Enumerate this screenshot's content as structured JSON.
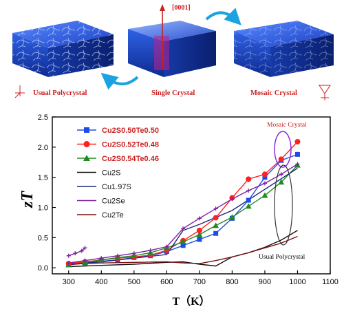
{
  "illustration": {
    "axis_label": "[0001]",
    "labels": [
      {
        "text": "Usual Polycrystal",
        "color": "#cc1f1f"
      },
      {
        "text": "Single Crystal",
        "color": "#cc1f1f"
      },
      {
        "text": "Mosaic Crystal",
        "color": "#cc1f1f"
      }
    ],
    "colors": {
      "crystal": "#1f4fd6",
      "arrow": "#1aa3e0",
      "label": "#cc1f1f"
    }
  },
  "chart_data": {
    "type": "line",
    "xlabel": "T（K）",
    "ylabel": "zT",
    "xlim": [
      250,
      1100
    ],
    "ylim": [
      -0.1,
      2.5
    ],
    "xticks": [
      300,
      400,
      500,
      600,
      700,
      800,
      900,
      1000,
      1100
    ],
    "yticks": [
      0.0,
      0.5,
      1.0,
      1.5,
      2.0,
      2.5
    ],
    "legend_position": "top-left",
    "annotations": [
      {
        "text": "Mosaic Crystal",
        "color": "#cc1f1f"
      },
      {
        "text": "Usual Polycrystal",
        "color": "#000000"
      }
    ],
    "series": [
      {
        "name": "Cu2S0.50Te0.50",
        "color": "#1f4ce6",
        "marker": "square",
        "legend_color": "#cc1f1f",
        "x": [
          300,
          350,
          400,
          450,
          500,
          550,
          600,
          650,
          700,
          750,
          800,
          850,
          900,
          950,
          1000
        ],
        "y": [
          0.05,
          0.08,
          0.11,
          0.13,
          0.17,
          0.2,
          0.27,
          0.37,
          0.47,
          0.57,
          0.82,
          1.12,
          1.5,
          1.78,
          1.88
        ]
      },
      {
        "name": "Cu2S0.52Te0.48",
        "color": "#ff2020",
        "marker": "circle",
        "legend_color": "#cc1f1f",
        "x": [
          300,
          350,
          400,
          450,
          500,
          550,
          600,
          650,
          700,
          750,
          800,
          850,
          900,
          950,
          1000
        ],
        "y": [
          0.07,
          0.1,
          0.13,
          0.16,
          0.18,
          0.21,
          0.29,
          0.45,
          0.62,
          0.83,
          1.16,
          1.47,
          1.55,
          1.8,
          2.09
        ]
      },
      {
        "name": "Cu2S0.54Te0.46",
        "color": "#1f8a1f",
        "marker": "triangle",
        "legend_color": "#cc1f1f",
        "x": [
          300,
          350,
          400,
          450,
          500,
          550,
          600,
          650,
          700,
          750,
          800,
          850,
          900,
          950,
          1000
        ],
        "y": [
          0.05,
          0.09,
          0.13,
          0.17,
          0.2,
          0.25,
          0.33,
          0.43,
          0.55,
          0.7,
          0.84,
          1.02,
          1.2,
          1.42,
          1.7
        ]
      },
      {
        "name": "Cu2S",
        "color": "#111111",
        "marker": "none",
        "legend_color": "#111111",
        "x": [
          300,
          400,
          500,
          600,
          650,
          700,
          750,
          800,
          850,
          900,
          950,
          1000
        ],
        "y": [
          0.02,
          0.04,
          0.06,
          0.09,
          0.1,
          0.06,
          0.03,
          0.18,
          0.25,
          0.34,
          0.46,
          0.62
        ]
      },
      {
        "name": "Cu1.97S",
        "color": "#1a237e",
        "marker": "none",
        "legend_color": "#111111",
        "x": [
          300,
          400,
          500,
          600,
          650,
          700,
          800,
          900,
          1000
        ],
        "y": [
          0.05,
          0.1,
          0.16,
          0.22,
          0.62,
          0.72,
          0.95,
          1.3,
          1.65
        ]
      },
      {
        "name": "Cu2Se",
        "color": "#7b1fa2",
        "marker": "cross",
        "legend_color": "#111111",
        "x": [
          300,
          350,
          400,
          450,
          500,
          550,
          600,
          650,
          700,
          750,
          800,
          850,
          900,
          950,
          1000
        ],
        "y": [
          0.08,
          0.12,
          0.16,
          0.2,
          0.24,
          0.29,
          0.35,
          0.65,
          0.82,
          0.98,
          1.14,
          1.28,
          1.4,
          1.55,
          1.72
        ]
      },
      {
        "name": "Cu2Te",
        "color": "#7a1010",
        "marker": "none",
        "legend_color": "#111111",
        "x": [
          300,
          400,
          500,
          600,
          650,
          700,
          750,
          800,
          850,
          900,
          950,
          1000
        ],
        "y": [
          0.06,
          0.08,
          0.09,
          0.1,
          0.08,
          0.07,
          0.12,
          0.18,
          0.25,
          0.33,
          0.41,
          0.52
        ]
      },
      {
        "name": "",
        "color": "#7b1fa2",
        "marker": "cross",
        "legend_color": "#7b1fa2",
        "x": [
          300,
          320,
          340,
          350
        ],
        "y": [
          0.2,
          0.24,
          0.28,
          0.33
        ]
      }
    ]
  }
}
